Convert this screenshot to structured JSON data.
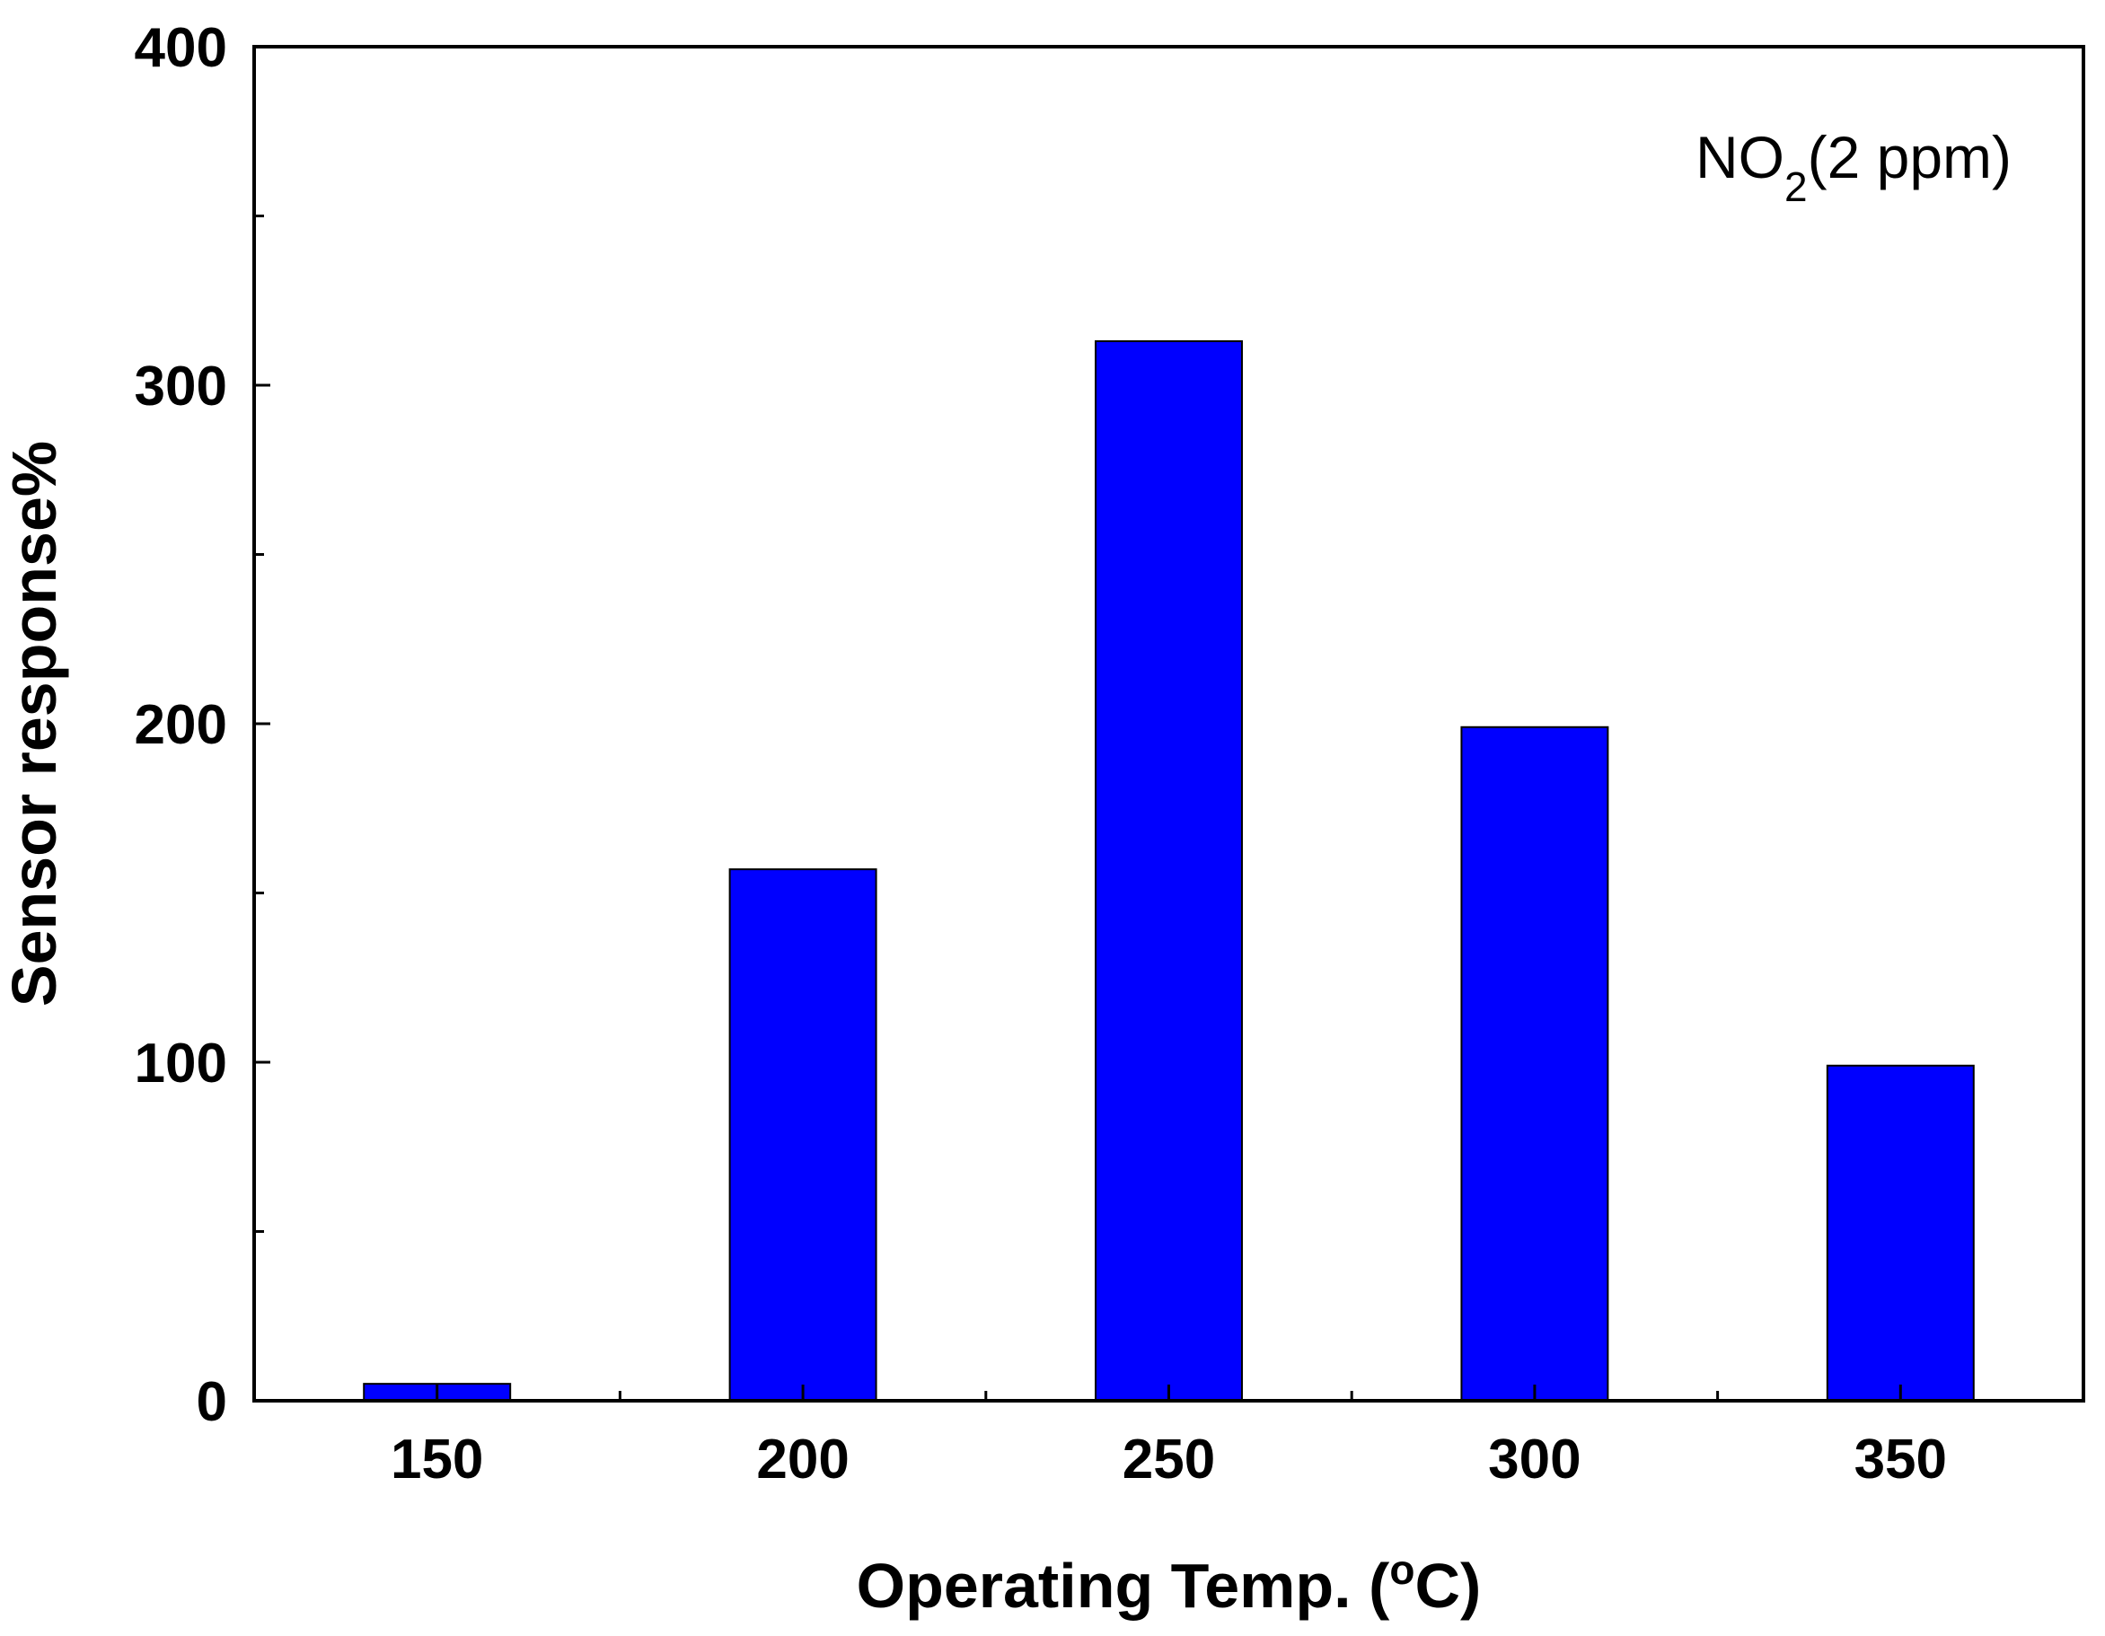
{
  "chart_data": {
    "type": "bar",
    "categories": [
      "150",
      "200",
      "250",
      "300",
      "350"
    ],
    "values": [
      5,
      157,
      313,
      199,
      99
    ],
    "title": "",
    "xlabel": {
      "main": "Operating Temp. (",
      "sup": "o",
      "tail": "C)"
    },
    "ylabel": "Sensor response%",
    "ylim": [
      0,
      400
    ],
    "yticks": [
      "0",
      "100",
      "200",
      "300",
      "400"
    ],
    "annotation": {
      "main": "NO",
      "sub": "2",
      "tail": "(2 ppm)"
    },
    "grid": false,
    "legend": "none",
    "bar_color": "#0000ff",
    "edge_color": "#000000"
  }
}
